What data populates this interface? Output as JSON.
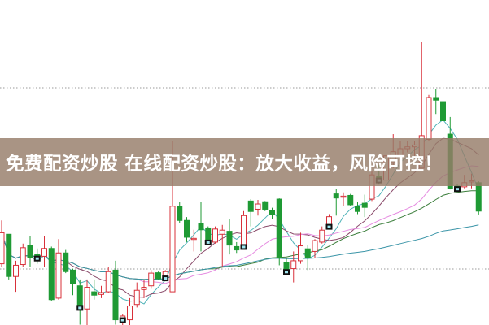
{
  "banner": {
    "text": "免费配资炒股 在线配资炒股：放大收益，风险可控！"
  },
  "chart_data": {
    "type": "candlestick",
    "title": "",
    "xlabel": "",
    "ylabel": "",
    "axes_shown": false,
    "ylim": [
      7.8,
      94.8
    ],
    "grid": "two dotted horizontal lines",
    "gridlines": [
      22.8,
      71.3
    ],
    "colors": {
      "up": "#d8303a",
      "down": "#1f9a34",
      "marker": "#111111",
      "grid": "#9a9a9a"
    },
    "ohlc": [
      [
        24.2,
        35.8,
        23.3,
        32.5
      ],
      [
        32.1,
        32.1,
        20,
        20.8
      ],
      [
        20.8,
        25,
        16.7,
        23.8
      ],
      [
        24,
        29.6,
        23.3,
        28.5
      ],
      [
        29.2,
        31.7,
        23.3,
        25.8
      ],
      [
        26.7,
        28.3,
        24.2,
        25.7
      ],
      [
        26.2,
        31.7,
        23.3,
        28.3
      ],
      [
        28.3,
        28.8,
        14.2,
        14.6
      ],
      [
        15,
        30.8,
        14.6,
        27.1
      ],
      [
        27.1,
        27.9,
        21.7,
        22.1
      ],
      [
        22.5,
        22.9,
        15.8,
        18.8
      ],
      [
        18.3,
        20,
        7.9,
        12.5
      ],
      [
        12.1,
        20,
        6.3,
        17.9
      ],
      [
        16.7,
        20,
        14.6,
        15.8
      ],
      [
        16,
        18.3,
        15,
        16.5
      ],
      [
        16.7,
        23.3,
        16.3,
        22.1
      ],
      [
        22.5,
        25,
        7.9,
        9.2
      ],
      [
        9.2,
        10.8,
        5.8,
        10.2
      ],
      [
        9.2,
        15,
        7.5,
        12.9
      ],
      [
        13.3,
        19.2,
        12.5,
        17.1
      ],
      [
        17.3,
        20,
        15,
        17.9
      ],
      [
        18.3,
        22.5,
        17.5,
        21.7
      ],
      [
        21.8,
        22.1,
        20,
        20.2
      ],
      [
        20.4,
        22.5,
        20,
        22.1
      ],
      [
        16.7,
        57.1,
        16.7,
        39.6
      ],
      [
        39.6,
        40.8,
        35,
        35.8
      ],
      [
        35.8,
        36.7,
        30,
        31.3
      ],
      [
        30.7,
        33.3,
        27.5,
        31
      ],
      [
        35,
        40.8,
        27.5,
        33.3
      ],
      [
        33.8,
        34.2,
        29.6,
        30
      ],
      [
        30,
        34.2,
        29.6,
        33.5
      ],
      [
        32.1,
        34.6,
        23.3,
        33.2
      ],
      [
        32.9,
        36.3,
        26.7,
        29.2
      ],
      [
        28.8,
        30,
        27.1,
        27.9
      ],
      [
        28.8,
        38.3,
        28.3,
        37.1
      ],
      [
        41,
        41.5,
        34.2,
        38.2
      ],
      [
        38.8,
        41.3,
        37.1,
        40.2
      ],
      [
        40.8,
        41,
        38.3,
        38.8
      ],
      [
        38.5,
        39.2,
        36.3,
        37.3
      ],
      [
        41.5,
        41.7,
        23.8,
        25.8
      ],
      [
        24.6,
        25.8,
        21.3,
        22.1
      ],
      [
        22.9,
        27.5,
        19.2,
        25
      ],
      [
        25,
        32.5,
        24.2,
        29
      ],
      [
        28.2,
        29.2,
        22.5,
        25.8
      ],
      [
        27.5,
        30.8,
        25.8,
        30.4
      ],
      [
        30,
        34.2,
        29.6,
        33.2
      ],
      [
        34.2,
        37.5,
        33.8,
        36.8
      ],
      [
        42.9,
        44.2,
        37.1,
        41.8
      ],
      [
        42,
        43.3,
        39.6,
        42.3
      ],
      [
        42.5,
        42.9,
        39.6,
        40
      ],
      [
        39.6,
        40.8,
        37.5,
        38.2
      ],
      [
        40.4,
        42.7,
        36.7,
        39.3
      ],
      [
        41.5,
        49,
        41,
        48
      ],
      [
        47.7,
        50.6,
        45.4,
        46.6
      ],
      [
        46.6,
        54.2,
        46.2,
        53.1
      ],
      [
        51.3,
        58.9,
        49.8,
        54.2
      ],
      [
        53,
        57,
        52,
        55
      ],
      [
        55,
        57,
        54,
        55.5
      ],
      [
        55.5,
        57,
        53,
        56
      ],
      [
        49.8,
        83.5,
        49.8,
        58.5
      ],
      [
        57.5,
        69.4,
        57.1,
        68.7
      ],
      [
        68.7,
        70.9,
        64.3,
        68
      ],
      [
        67.6,
        68,
        62.2,
        62.5
      ],
      [
        58.9,
        63.5,
        44.1,
        44.4
      ],
      [
        45,
        45.5,
        44,
        44.3
      ],
      [
        44.8,
        48,
        44.4,
        45.9
      ],
      [
        46.1,
        48.3,
        44.4,
        46.4
      ],
      [
        45.9,
        46.3,
        37.4,
        38.3
      ]
    ],
    "signal_markers": [
      5,
      11,
      17,
      23,
      29,
      34,
      40,
      46,
      53,
      64
    ],
    "moving_averages": [
      {
        "period": 5,
        "color": "#4fb3b8"
      },
      {
        "period": 10,
        "color": "#8a4a6a"
      },
      {
        "period": 20,
        "color": "#e58ae0"
      },
      {
        "period": 30,
        "color": "#3a7d3a"
      },
      {
        "period": 60,
        "color": "#3b95a8"
      }
    ]
  }
}
